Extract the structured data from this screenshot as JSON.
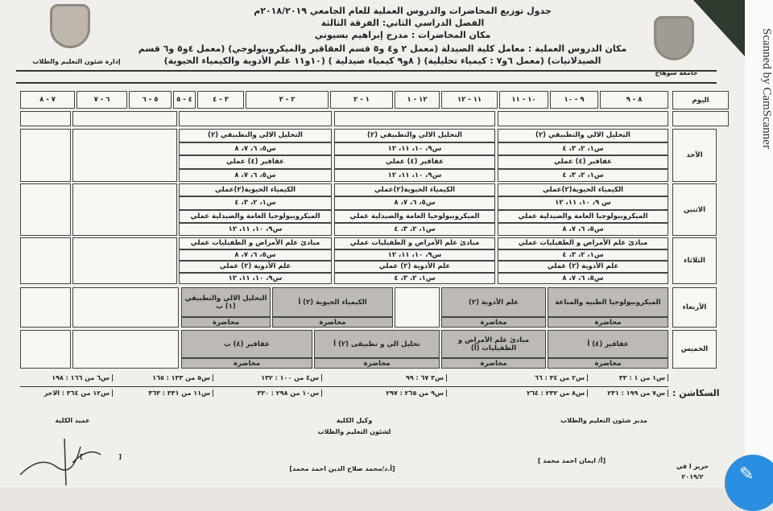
{
  "header": {
    "title": "جدول توزيع المحاضرات والدروس العملية للعام الجامعي ٢٠١٨/٢٠١٩م",
    "semester": "الفصل الدراسي الثاني: الفرقة الثالثة",
    "lecture_place": "مكان المحاضرات : مدرج إبراهيم بسيوني",
    "lab_place_1": "مكان الدروس العملية : معامل كلية الصيدلة (معمل ٢ و٤ و٥ قسم العقاقير والميكروبيولوجي) (معمل ٤و٥ و٦ قسم",
    "lab_place_2": "الصيدلانيات) (معمل ٦و٧ : كيمياء تحليلية) ( ٨و٩ كيمياء صيدلية ) (١٠و١١ علم الأدوية والكيمياء الحيوية)",
    "left_dept": "إدارة شئون التعليم والطلاب",
    "right_univ": "جامعة سوهاج"
  },
  "watermark": "Scanned by CamScanner",
  "table": {
    "day_header": "اليوم",
    "times": [
      "٨ - ٩",
      "٩ - ١٠",
      "١٠ - ١١",
      "١١ - ١٢",
      "١٢ - ١",
      "١ - ٢",
      "٢ - ٣",
      "٣ - ٤",
      "٤ - ٥",
      "٥ - ٦",
      "٦ - ٧",
      "٧ - ٨"
    ],
    "days": {
      "sun": {
        "label": "الأحد",
        "cells": [
          [
            "التحليل الالي والتطبيقي (٢)",
            "س١، ٢، ٣، ٤",
            "عقاقير (٤) عملي",
            "س١، ٢، ٣، ٤"
          ],
          [
            "التحليل الالي والتطبيقي (٢)",
            "س٩، ١٠، ١١، ١٢",
            "عقاقير (٤) عملي",
            "س٩، ١٠، ١١، ١٢"
          ],
          [
            "التحليل الالي والتطبيقي (٢)",
            "س٥، ٦، ٧، ٨",
            "عقاقير (٤) عملي",
            "س٥، ٦، ٧، ٨"
          ]
        ]
      },
      "mon": {
        "label": "الاثنين",
        "cells": [
          [
            "الكيمياء الحيوية(٢)عملي",
            "س ٩، ١٠، ١١، ١٢",
            "الميكروبيولوجيا العامة والصيدلية عملي",
            "س٥، ٦، ٧، ٨"
          ],
          [
            "الكيمياء الحيوية(٢)عملي",
            "س٥، ٦، ٧، ٨",
            "الميكروبيولوجيا العامة والصيدلية عملي",
            "س١، ٢، ٣، ٤"
          ],
          [
            "الكيمياء الحيوية(٢)عملي",
            "س١، ٢، ٣، ٤",
            "الميكروبيولوجيا العامة والصيدلية عملي",
            "س٩، ١٠، ١١، ١٢"
          ]
        ]
      },
      "tue": {
        "label": "الثلاثاء",
        "cells": [
          [
            "مبادئ علم الأمراض و الطفيليات عملي",
            "س١، ٢، ٣، ٤",
            "علم الأدوية (٢) عملي",
            "س٥، ٦، ٧، ٨"
          ],
          [
            "مبادئ علم الأمراض و الطفيليات عملي",
            "س٩، ١٠، ١١، ١٢",
            "علم الأدوية (٢) عملي",
            "س١، ٢، ٣، ٤"
          ],
          [
            "مبادئ علم الأمراض و الطفيليات عملي",
            "س٥، ٦، ٧، ٨",
            "علم الأدوية (٢) عملي",
            "س٩، ١٠، ١١، ١٢"
          ]
        ]
      },
      "wed": {
        "label": "الأربعاء",
        "cells": [
          [
            "الميكروبيولوجيا الطبيه والمناعة",
            "محاضرة"
          ],
          [
            "علم الأدوية (٢)",
            "محاضرة"
          ],
          [
            "الكيمياء الحيوية (٢) أ",
            "محاضرة"
          ],
          [
            "التحليل الالي والتطبيقي (١) ب",
            "محاضرة"
          ]
        ]
      },
      "thu": {
        "label": "الخميس",
        "cells": [
          [
            "عقاقير (٤) أ",
            "محاضرة"
          ],
          [
            "مبادئ علم الأمراض و الطفيليات (أ)",
            "محاضرة"
          ],
          [
            "تحليل الى و تطبيقى (٢) أ",
            "محاضرة"
          ],
          [
            "عقاقير (٤) ب",
            "محاضرة"
          ]
        ]
      }
    }
  },
  "sections": {
    "label": "السكاشن :",
    "row1": [
      "س١ من ١ : ٣٣",
      "س٢ من ٣٤ : ٦٦",
      "س٣ ٦٧ : ٩٩",
      "س٤ من ١٠٠ : ١٣٢",
      "س٥ من ١٣٣ : ١٦٥",
      "س٦ من ١٦٦ : ١٩٨"
    ],
    "row2": [
      "س٧ من ١٩٩ : ٢٣١",
      "س٨ من ٢٣٢ : ٢٦٤",
      "س٩ من ٢٦٥ : ٢٩٧",
      "س١٠ من ٢٩٨ : ٣٣٠",
      "س١١ من ٣٣١ : ٣٦٣",
      "س١٢ من ٣٦٤ : الاخر"
    ]
  },
  "signatures": {
    "director": "مدير شئون التعليم والطلاب",
    "director_name": "[أ/ ايمان احمد محمد ]",
    "vice": "وكيل الكلية",
    "vice_2": "لشئون التعليم والطلاب",
    "vice_name": "[أ.د/محمد صلاح الدين احمد محمد]",
    "dean": "عميد الكلية",
    "dean_brackets": "[                ]",
    "written": "حرير ا في",
    "date": "٢٠١٩/٢"
  },
  "colors": {
    "shaded": "#bdbab5",
    "fab": "#2a8fe0"
  }
}
